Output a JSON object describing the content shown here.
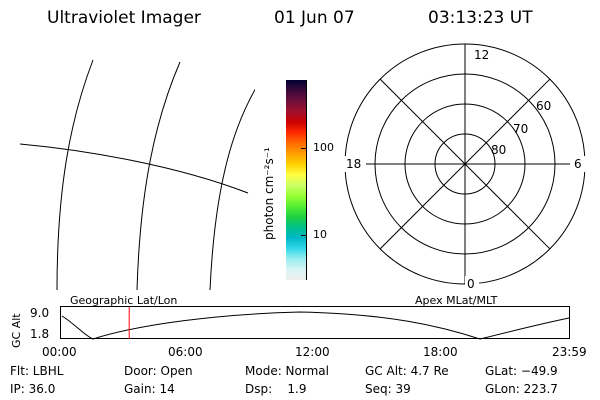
{
  "header": {
    "title": "Ultraviolet Imager",
    "date": "01 Jun 07",
    "time": "03:13:23 UT"
  },
  "colorbar": {
    "label": "photon cm⁻²s⁻¹",
    "ticks": [
      "100",
      "10"
    ],
    "colors": [
      "#000033",
      "#3a0a3a",
      "#6e0f3a",
      "#a1102f",
      "#cc0000",
      "#ff2a00",
      "#ff6a00",
      "#ffa000",
      "#ffd000",
      "#ffff40",
      "#ccff66",
      "#99ff33",
      "#55ee33",
      "#20d040",
      "#00c08a",
      "#00b8c8",
      "#33d8e8",
      "#99eef0",
      "#d8f4f4",
      "#eeeeee"
    ]
  },
  "polar_plot": {
    "clock_labels": {
      "top": "12",
      "left": "18",
      "right": "6",
      "bottom": "0"
    },
    "lat_labels": [
      "60",
      "70",
      "80"
    ]
  },
  "timeline": {
    "left_label": "Geographic Lat/Lon",
    "right_label": "Apex MLat/MLT",
    "axis_title": "GC Alt",
    "y_ticks": [
      "9.0",
      "1.8"
    ],
    "x_ticks": [
      "00:00",
      "06:00",
      "12:00",
      "18:00",
      "23:59"
    ],
    "current_time_hours": 3.22,
    "marker_color": "#ff0000"
  },
  "status": {
    "flt": "Flt: LBHL",
    "door": "Door: Open",
    "mode": "Mode: Normal",
    "gc_alt": "GC Alt: 4.7 Re",
    "glat": "GLat: −49.9",
    "ip": "IP: 36.0",
    "gain": "Gain: 14",
    "dsp": "Dsp:    1.9",
    "seq": "Seq: 39",
    "glon": "GLon: 223.7"
  }
}
